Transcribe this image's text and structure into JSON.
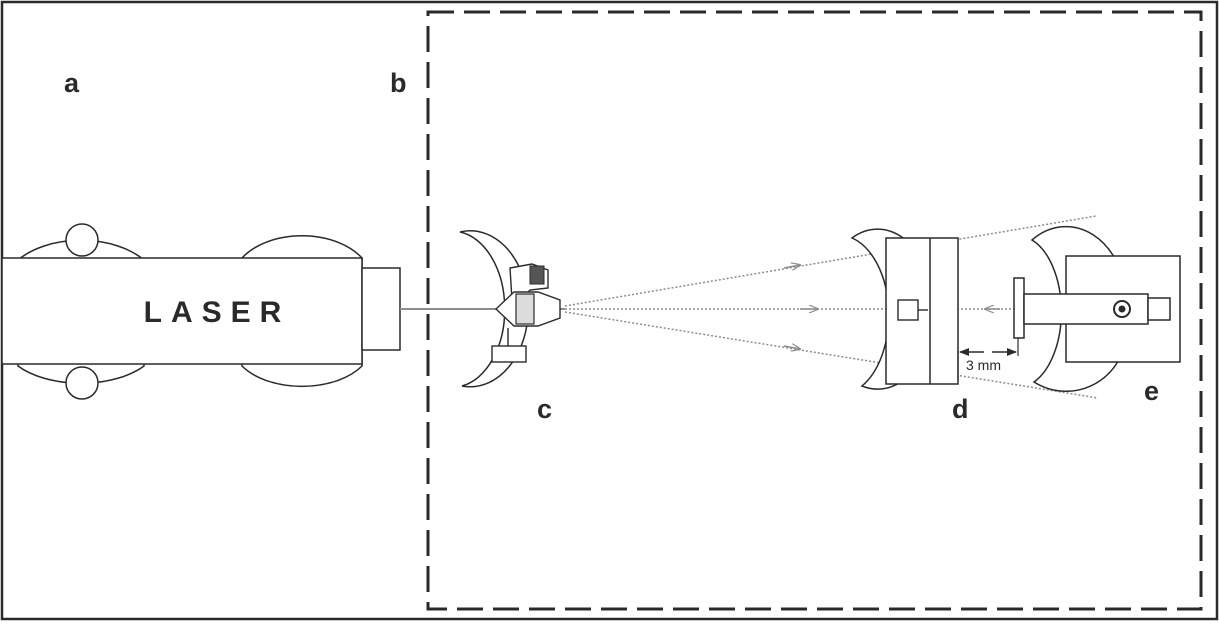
{
  "labels": {
    "a": "a",
    "b": "b",
    "c": "c",
    "d": "d",
    "e": "e"
  },
  "laser": {
    "label": "LASER"
  },
  "gap": {
    "label": "3 mm"
  },
  "colors": {
    "ink": "#2a2a2a",
    "beam": "#8c8c8c",
    "background": "#ffffff"
  }
}
